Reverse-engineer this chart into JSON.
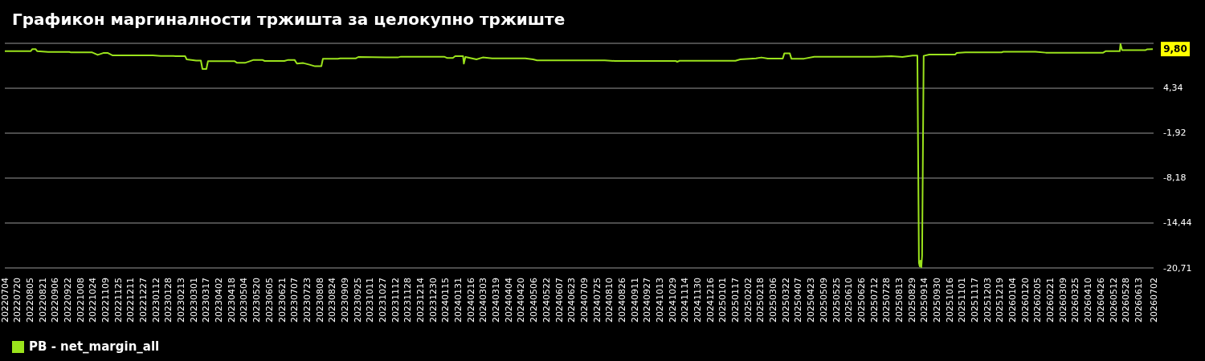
{
  "chart_data": {
    "type": "line",
    "title": "Графикон маргиналности тржишта за целокупно тржиште",
    "x": [
      "2022-07-04",
      "2022-08-06",
      "2022-08-08",
      "2022-08-12",
      "2022-08-14",
      "2022-08-28",
      "2022-09-24",
      "2022-09-26",
      "2022-10-23",
      "2022-10-30",
      "2022-11-06",
      "2022-11-12",
      "2022-11-18",
      "2023-01-08",
      "2023-01-18",
      "2023-02-03",
      "2023-02-06",
      "2023-02-18",
      "2023-02-20",
      "2023-03-04",
      "2023-03-10",
      "2023-03-12",
      "2023-03-17",
      "2023-03-19",
      "2023-04-22",
      "2023-04-25",
      "2023-05-05",
      "2023-05-11",
      "2023-05-16",
      "2023-05-27",
      "2023-05-30",
      "2023-06-24",
      "2023-06-29",
      "2023-07-07",
      "2023-07-10",
      "2023-07-18",
      "2023-07-26",
      "2023-08-02",
      "2023-08-10",
      "2023-08-12",
      "2023-08-31",
      "2023-09-03",
      "2023-09-23",
      "2023-09-26",
      "2023-10-31",
      "2023-11-15",
      "2023-11-19",
      "2024-01-13",
      "2024-01-17",
      "2024-01-24",
      "2024-01-27",
      "2024-02-06",
      "2024-02-07",
      "2024-02-09",
      "2024-02-23",
      "2024-03-02",
      "2024-03-14",
      "2024-04-25",
      "2024-05-05",
      "2024-05-10",
      "2024-08-04",
      "2024-08-17",
      "2024-11-02",
      "2024-11-04",
      "2024-11-07",
      "2025-01-17",
      "2025-01-23",
      "2025-02-12",
      "2025-02-19",
      "2025-02-27",
      "2025-03-18",
      "2025-03-20",
      "2025-03-27",
      "2025-03-29",
      "2025-04-14",
      "2025-04-27",
      "2025-07-13",
      "2025-08-03",
      "2025-08-17",
      "2025-08-30",
      "2025-09-05",
      "2025-09-07",
      "2025-09-08",
      "2025-09-09",
      "2025-09-10",
      "2025-09-11",
      "2025-09-13",
      "2025-09-20",
      "2025-10-23",
      "2025-10-25",
      "2025-11-05",
      "2025-12-21",
      "2025-12-23",
      "2026-02-02",
      "2026-02-15",
      "2026-04-29",
      "2026-05-02",
      "2026-05-20",
      "2026-05-21",
      "2026-05-23",
      "2026-06-22",
      "2026-06-24",
      "2026-07-01"
    ],
    "series": [
      {
        "name": "PB - net_margin_all",
        "color": "#9be31c",
        "values": [
          9.52,
          9.52,
          9.8,
          9.8,
          9.52,
          9.4,
          9.4,
          9.33,
          9.33,
          8.99,
          9.25,
          9.25,
          8.92,
          8.92,
          8.85,
          8.85,
          8.81,
          8.81,
          8.36,
          8.2,
          8.2,
          7.02,
          7.02,
          8.1,
          8.1,
          7.88,
          7.88,
          8.1,
          8.29,
          8.29,
          8.14,
          8.14,
          8.29,
          8.29,
          7.77,
          7.85,
          7.62,
          7.4,
          7.4,
          8.44,
          8.44,
          8.51,
          8.51,
          8.7,
          8.63,
          8.63,
          8.74,
          8.74,
          8.55,
          8.55,
          8.81,
          8.81,
          7.77,
          8.7,
          8.36,
          8.63,
          8.51,
          8.51,
          8.36,
          8.22,
          8.22,
          8.14,
          8.14,
          8.03,
          8.17,
          8.17,
          8.36,
          8.51,
          8.63,
          8.48,
          8.48,
          9.19,
          9.19,
          8.46,
          8.46,
          8.73,
          8.73,
          8.81,
          8.7,
          8.89,
          8.89,
          -20.0,
          -20.5,
          -19.7,
          -20.6,
          -19.0,
          8.85,
          9.03,
          9.03,
          9.27,
          9.35,
          9.35,
          9.42,
          9.42,
          9.3,
          9.3,
          9.5,
          9.5,
          10.5,
          9.66,
          9.66,
          9.77,
          9.8
        ]
      }
    ],
    "xlim": [
      "2022-07-04",
      "2026-07-02"
    ],
    "xticks": [
      {
        "value": "2022-07-04",
        "label": "20220704"
      },
      {
        "value": "2022-07-20",
        "label": "20220720"
      },
      {
        "value": "2022-08-05",
        "label": "20220805"
      },
      {
        "value": "2022-08-21",
        "label": "20220821"
      },
      {
        "value": "2022-09-06",
        "label": "20220906"
      },
      {
        "value": "2022-09-22",
        "label": "20220922"
      },
      {
        "value": "2022-10-08",
        "label": "20221008"
      },
      {
        "value": "2022-10-24",
        "label": "20221024"
      },
      {
        "value": "2022-11-09",
        "label": "20221109"
      },
      {
        "value": "2022-11-25",
        "label": "20221125"
      },
      {
        "value": "2022-12-11",
        "label": "20221211"
      },
      {
        "value": "2022-12-27",
        "label": "20221227"
      },
      {
        "value": "2023-01-12",
        "label": "20230112"
      },
      {
        "value": "2023-01-28",
        "label": "20230128"
      },
      {
        "value": "2023-02-13",
        "label": "20230213"
      },
      {
        "value": "2023-03-01",
        "label": "20230301"
      },
      {
        "value": "2023-03-17",
        "label": "20230317"
      },
      {
        "value": "2023-04-02",
        "label": "20230402"
      },
      {
        "value": "2023-04-18",
        "label": "20230418"
      },
      {
        "value": "2023-05-04",
        "label": "20230504"
      },
      {
        "value": "2023-05-20",
        "label": "20230520"
      },
      {
        "value": "2023-06-05",
        "label": "20230605"
      },
      {
        "value": "2023-06-21",
        "label": "20230621"
      },
      {
        "value": "2023-07-07",
        "label": "20230707"
      },
      {
        "value": "2023-07-23",
        "label": "20230723"
      },
      {
        "value": "2023-08-08",
        "label": "20230808"
      },
      {
        "value": "2023-08-24",
        "label": "20230824"
      },
      {
        "value": "2023-09-09",
        "label": "20230909"
      },
      {
        "value": "2023-09-25",
        "label": "20230925"
      },
      {
        "value": "2023-10-11",
        "label": "20231011"
      },
      {
        "value": "2023-10-27",
        "label": "20231027"
      },
      {
        "value": "2023-11-12",
        "label": "20231112"
      },
      {
        "value": "2023-11-28",
        "label": "20231128"
      },
      {
        "value": "2023-12-14",
        "label": "20231214"
      },
      {
        "value": "2023-12-30",
        "label": "20231230"
      },
      {
        "value": "2024-01-15",
        "label": "20240115"
      },
      {
        "value": "2024-01-31",
        "label": "20240131"
      },
      {
        "value": "2024-02-16",
        "label": "20240216"
      },
      {
        "value": "2024-03-03",
        "label": "20240303"
      },
      {
        "value": "2024-03-19",
        "label": "20240319"
      },
      {
        "value": "2024-04-04",
        "label": "20240404"
      },
      {
        "value": "2024-04-20",
        "label": "20240420"
      },
      {
        "value": "2024-05-06",
        "label": "20240506"
      },
      {
        "value": "2024-05-22",
        "label": "20240522"
      },
      {
        "value": "2024-06-07",
        "label": "20240607"
      },
      {
        "value": "2024-06-23",
        "label": "20240623"
      },
      {
        "value": "2024-07-09",
        "label": "20240709"
      },
      {
        "value": "2024-07-25",
        "label": "20240725"
      },
      {
        "value": "2024-08-10",
        "label": "20240810"
      },
      {
        "value": "2024-08-26",
        "label": "20240826"
      },
      {
        "value": "2024-09-11",
        "label": "20240911"
      },
      {
        "value": "2024-09-27",
        "label": "20240927"
      },
      {
        "value": "2024-10-13",
        "label": "20241013"
      },
      {
        "value": "2024-10-29",
        "label": "20241029"
      },
      {
        "value": "2024-11-14",
        "label": "20241114"
      },
      {
        "value": "2024-11-30",
        "label": "20241130"
      },
      {
        "value": "2024-12-16",
        "label": "20241216"
      },
      {
        "value": "2025-01-01",
        "label": "20250101"
      },
      {
        "value": "2025-01-17",
        "label": "20250117"
      },
      {
        "value": "2025-02-02",
        "label": "20250202"
      },
      {
        "value": "2025-02-18",
        "label": "20250218"
      },
      {
        "value": "2025-03-06",
        "label": "20250306"
      },
      {
        "value": "2025-03-22",
        "label": "20250322"
      },
      {
        "value": "2025-04-07",
        "label": "20250407"
      },
      {
        "value": "2025-04-23",
        "label": "20250423"
      },
      {
        "value": "2025-05-09",
        "label": "20250509"
      },
      {
        "value": "2025-05-25",
        "label": "20250525"
      },
      {
        "value": "2025-06-10",
        "label": "20250610"
      },
      {
        "value": "2025-06-26",
        "label": "20250626"
      },
      {
        "value": "2025-07-12",
        "label": "20250712"
      },
      {
        "value": "2025-07-28",
        "label": "20250728"
      },
      {
        "value": "2025-08-13",
        "label": "20250813"
      },
      {
        "value": "2025-08-29",
        "label": "20250829"
      },
      {
        "value": "2025-09-14",
        "label": "20250914"
      },
      {
        "value": "2025-09-30",
        "label": "20250930"
      },
      {
        "value": "2025-10-16",
        "label": "20251016"
      },
      {
        "value": "2025-11-01",
        "label": "20251101"
      },
      {
        "value": "2025-11-17",
        "label": "20251117"
      },
      {
        "value": "2025-12-03",
        "label": "20251203"
      },
      {
        "value": "2025-12-19",
        "label": "20251219"
      },
      {
        "value": "2026-01-04",
        "label": "20260104"
      },
      {
        "value": "2026-01-20",
        "label": "20260120"
      },
      {
        "value": "2026-02-05",
        "label": "20260205"
      },
      {
        "value": "2026-02-21",
        "label": "20260221"
      },
      {
        "value": "2026-03-09",
        "label": "20260309"
      },
      {
        "value": "2026-03-25",
        "label": "20260325"
      },
      {
        "value": "2026-04-10",
        "label": "20260410"
      },
      {
        "value": "2026-04-26",
        "label": "20260426"
      },
      {
        "value": "2026-05-12",
        "label": "20260512"
      },
      {
        "value": "2026-05-28",
        "label": "20260528"
      },
      {
        "value": "2026-06-13",
        "label": "20260613"
      },
      {
        "value": "2026-07-02",
        "label": "20260702"
      }
    ],
    "ylim": [
      -20.71,
      10.6
    ],
    "yticks": [
      {
        "value": -20.71,
        "label": "-20,71"
      },
      {
        "value": -14.44,
        "label": "-14,44"
      },
      {
        "value": -8.18,
        "label": "-8,18"
      },
      {
        "value": -1.92,
        "label": "-1,92"
      },
      {
        "value": 4.34,
        "label": "4,34"
      },
      {
        "value": 10.6,
        "label": null
      }
    ],
    "annotations": [
      {
        "text": "9,80",
        "x": "2026-07-01",
        "y": 9.8
      }
    ],
    "grid": "y",
    "legend": "bottom",
    "marker": "none",
    "line_style": "solid"
  }
}
